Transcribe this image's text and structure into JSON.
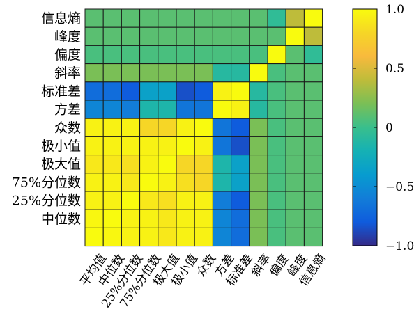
{
  "chart_data": {
    "type": "heatmap",
    "title": "",
    "xlabel": "",
    "ylabel": "",
    "row_labels": [
      "信息熵",
      "峰度",
      "偏度",
      "斜率",
      "标准差",
      "方差",
      "众数",
      "极小值",
      "极大值",
      "75%分位数",
      "25%分位数",
      "中位数",
      ""
    ],
    "col_labels": [
      "平均值",
      "中位数",
      "25%分位数",
      "75%分位数",
      "极大值",
      "极小值",
      "众数",
      "方差",
      "标准差",
      "斜率",
      "偏度",
      "峰度",
      "信息熵"
    ],
    "values": [
      [
        0.1,
        0.1,
        0.1,
        0.1,
        0.1,
        0.1,
        0.1,
        0.1,
        0.1,
        0.1,
        -0.05,
        0.4,
        1.0
      ],
      [
        0.1,
        0.1,
        0.1,
        0.1,
        0.1,
        0.1,
        0.1,
        0.1,
        0.1,
        0.1,
        0.1,
        1.0,
        0.4
      ],
      [
        0.05,
        0.05,
        0.05,
        0.05,
        0.05,
        0.05,
        0.05,
        0.05,
        0.05,
        0.05,
        1.0,
        0.1,
        -0.05
      ],
      [
        0.2,
        0.2,
        0.2,
        0.2,
        0.2,
        0.2,
        0.2,
        -0.1,
        -0.1,
        1.0,
        0.05,
        0.1,
        0.1
      ],
      [
        -0.7,
        -0.7,
        -0.8,
        -0.35,
        -0.35,
        -0.85,
        -0.8,
        0.95,
        1.0,
        -0.1,
        0.05,
        0.1,
        0.1
      ],
      [
        -0.55,
        -0.55,
        -0.6,
        -0.15,
        -0.15,
        -0.65,
        -0.65,
        1.0,
        0.95,
        -0.1,
        0.05,
        0.1,
        0.1
      ],
      [
        0.95,
        0.95,
        0.95,
        0.8,
        0.8,
        0.95,
        1.0,
        -0.65,
        -0.8,
        0.2,
        0.05,
        0.1,
        0.1
      ],
      [
        0.95,
        0.95,
        0.95,
        0.95,
        0.95,
        1.0,
        0.95,
        -0.65,
        -0.85,
        0.2,
        0.05,
        0.1,
        0.1
      ],
      [
        0.9,
        0.9,
        0.85,
        0.95,
        1.0,
        0.8,
        0.8,
        -0.15,
        -0.35,
        0.2,
        0.05,
        0.1,
        0.1
      ],
      [
        0.95,
        0.95,
        0.9,
        1.0,
        0.95,
        0.85,
        0.8,
        -0.15,
        -0.35,
        0.2,
        0.05,
        0.1,
        0.1
      ],
      [
        0.95,
        0.95,
        1.0,
        0.9,
        0.85,
        0.95,
        0.95,
        -0.6,
        -0.8,
        0.2,
        0.05,
        0.1,
        0.1
      ],
      [
        0.98,
        1.0,
        0.95,
        0.95,
        0.9,
        0.95,
        0.95,
        -0.55,
        -0.7,
        0.2,
        0.05,
        0.1,
        0.1
      ],
      [
        1.0,
        0.98,
        0.95,
        0.95,
        0.9,
        0.95,
        0.95,
        -0.55,
        -0.7,
        0.2,
        0.05,
        0.1,
        0.1
      ]
    ],
    "colorbar": {
      "range": [
        -1.0,
        1.0
      ],
      "tick_labels": [
        "1.0",
        "0.5",
        "0",
        "−0.5",
        "−1.0"
      ],
      "tick_values": [
        1.0,
        0.5,
        0,
        -0.5,
        -1.0
      ],
      "colormap": "parula"
    },
    "grid": true
  }
}
